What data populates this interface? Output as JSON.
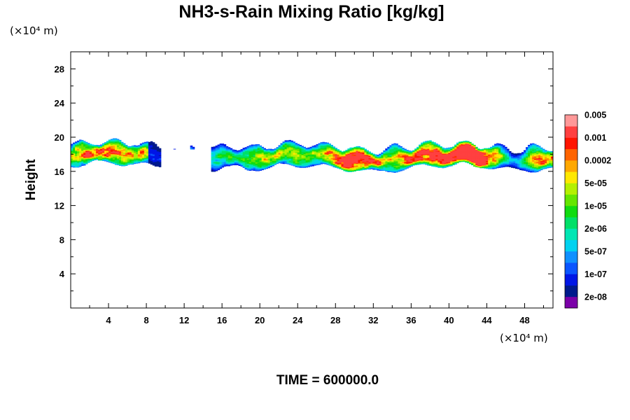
{
  "chart_data": {
    "type": "heatmap",
    "title": "NH3-s-Rain Mixing Ratio [kg/kg]",
    "ylabel": "Height",
    "x_unit": "(×10⁴ m)",
    "y_unit": "(×10⁴ m)",
    "xlim": [
      0,
      51
    ],
    "ylim": [
      0,
      30
    ],
    "x_ticks": [
      4,
      8,
      12,
      16,
      20,
      24,
      28,
      32,
      36,
      40,
      44,
      48
    ],
    "y_ticks": [
      4,
      8,
      12,
      16,
      20,
      24,
      28
    ],
    "time_label": "TIME = 600000.0",
    "colorbar": {
      "colors": [
        "#7b00a8",
        "#001a8c",
        "#0016e6",
        "#0a55ff",
        "#0f90ff",
        "#00d2f0",
        "#00e6b4",
        "#00e068",
        "#10dc10",
        "#64e600",
        "#b4f000",
        "#ffe800",
        "#ffa800",
        "#ff6400",
        "#ff1400",
        "#ff4040",
        "#ff9898"
      ],
      "labels": [
        "2e-08",
        "1e-07",
        "5e-07",
        "2e-06",
        "1e-05",
        "5e-05",
        "0.0002",
        "0.001",
        "0.005"
      ]
    },
    "layer": {
      "y_range_approx": [
        16.2,
        20.2
      ],
      "x_extent": [
        0,
        51
      ],
      "gap_x": [
        10,
        14.8
      ],
      "peak_x": 41.5,
      "peak_y": 17.5,
      "peak_level": "0.001"
    }
  }
}
